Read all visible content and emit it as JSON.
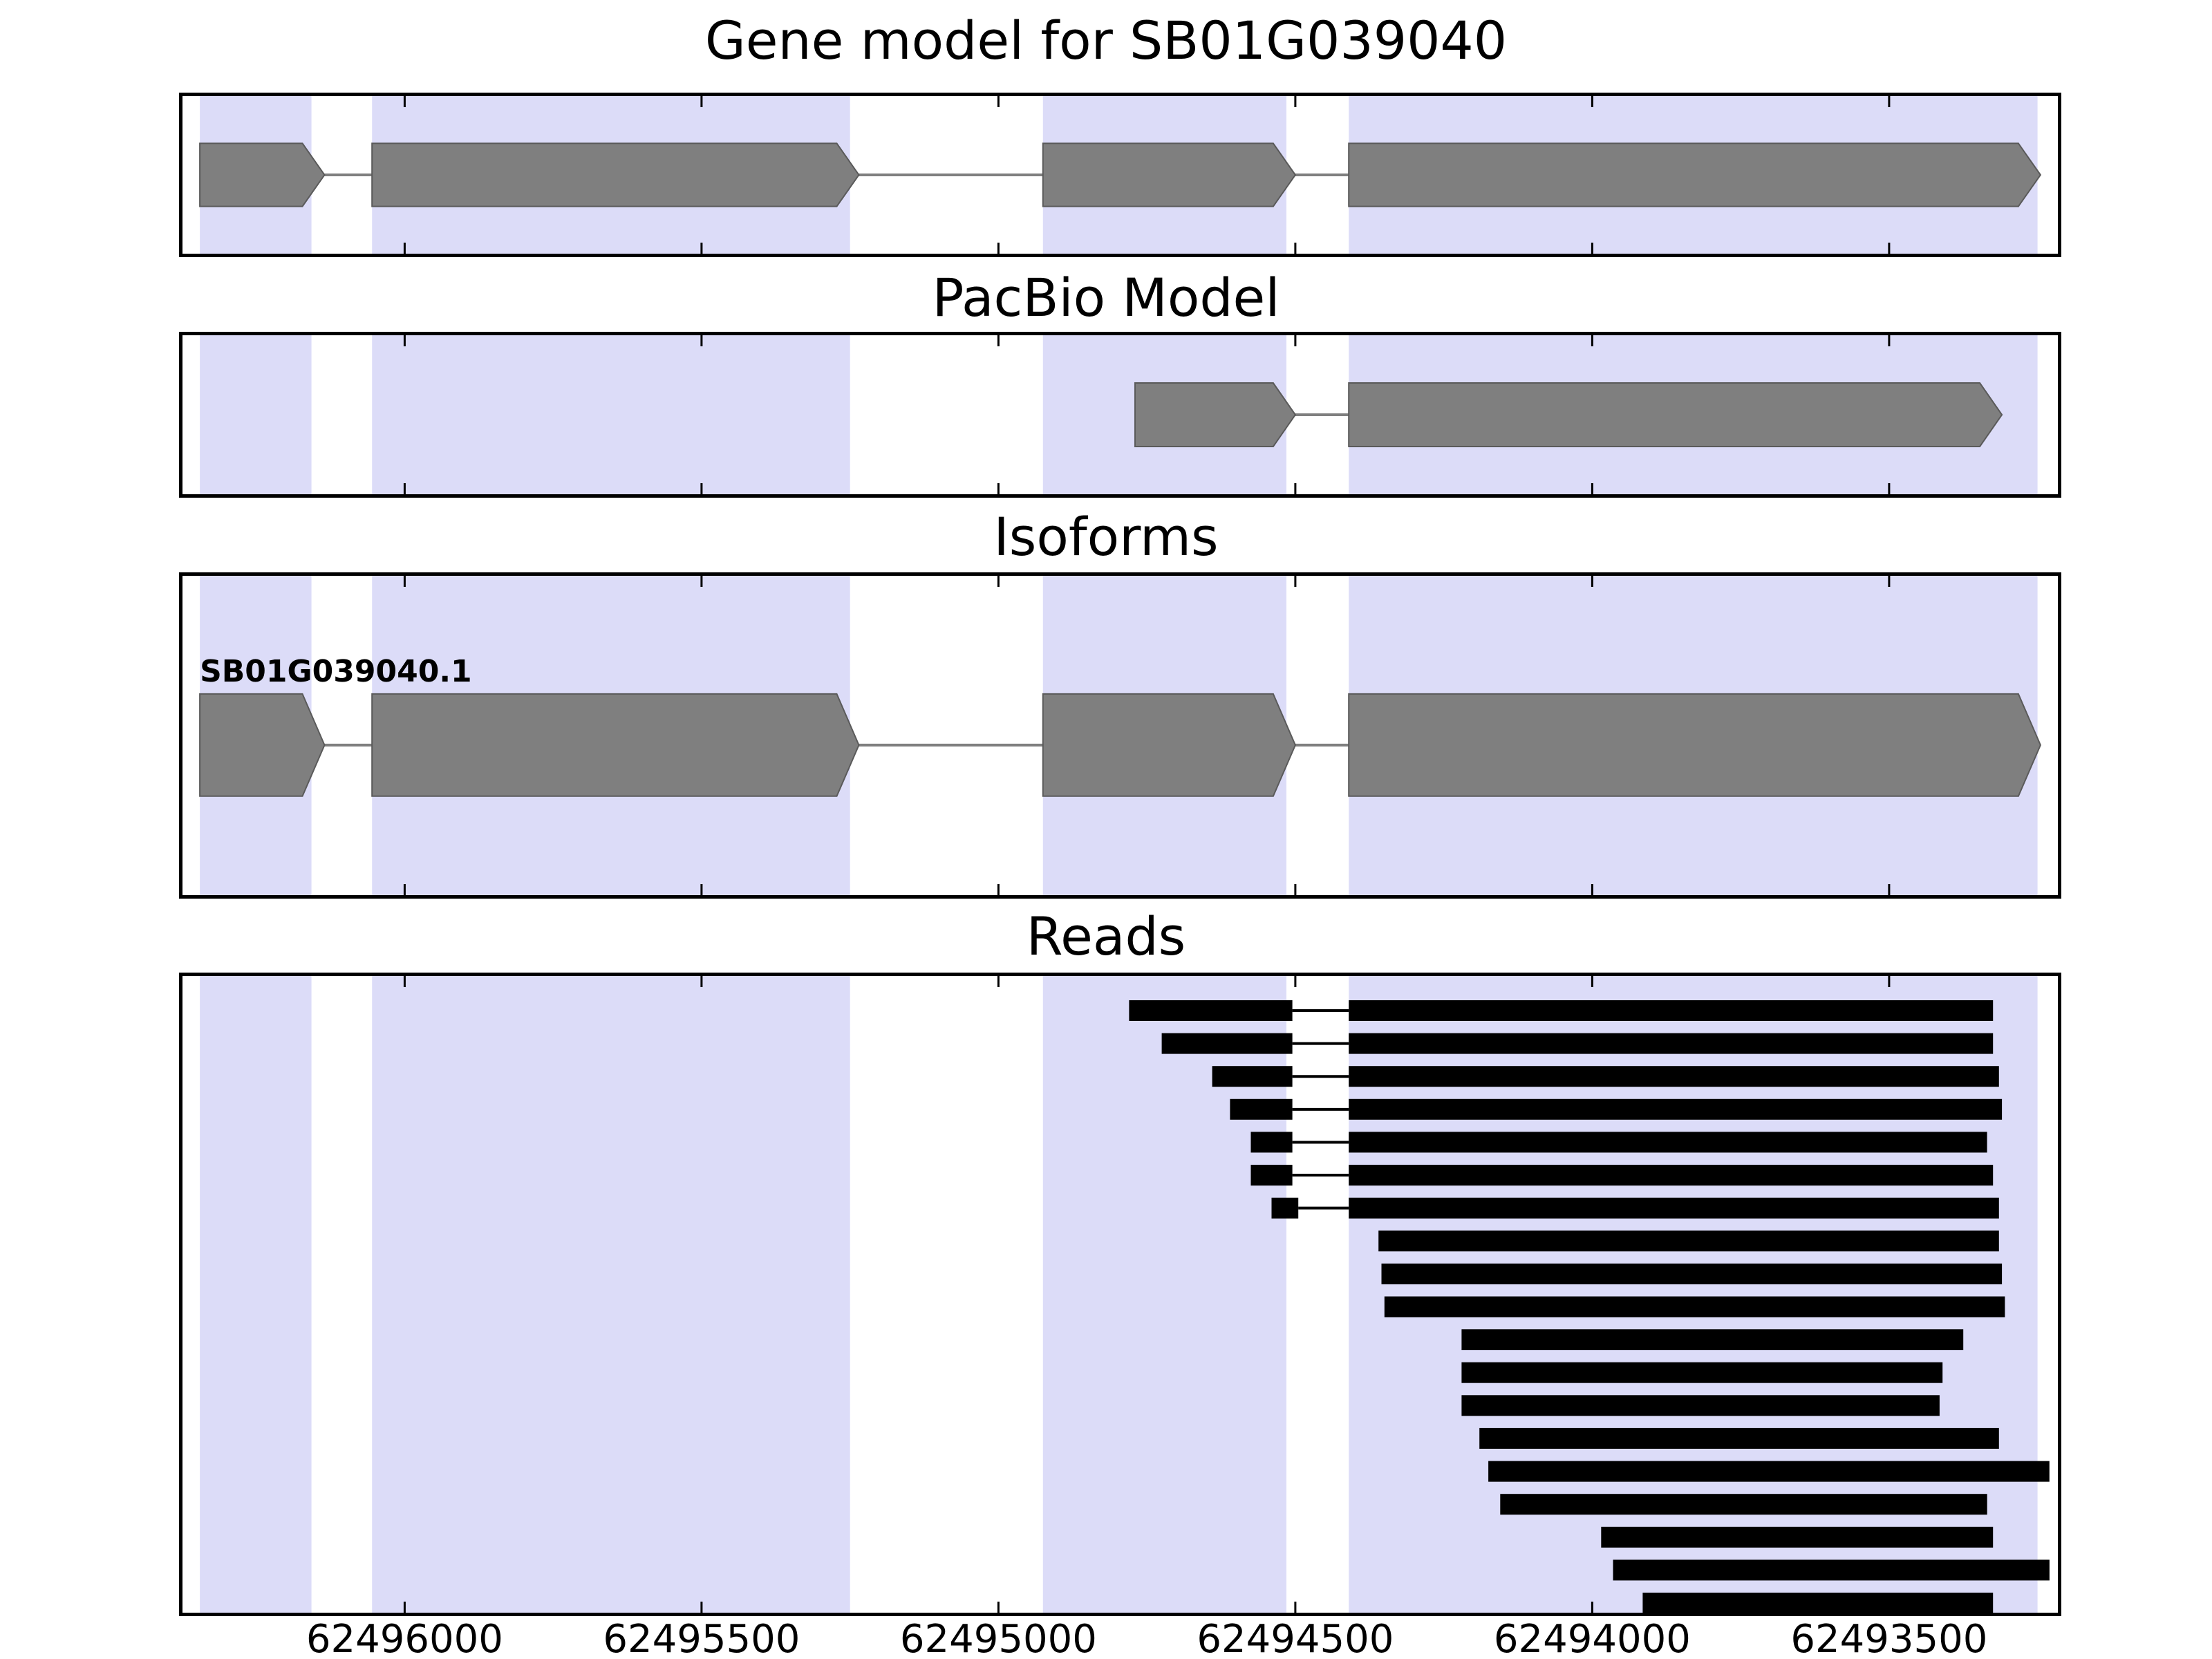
{
  "chart_data": {
    "type": "genome-tracks",
    "axis": {
      "xlim": [
        62496380,
        62493210
      ],
      "orientation": "decreasing-left-to-right",
      "ticks": [
        {
          "value": 62496000,
          "label": "62496000"
        },
        {
          "value": 62495500,
          "label": "62495500"
        },
        {
          "value": 62495000,
          "label": "62495000"
        },
        {
          "value": 62494500,
          "label": "62494500"
        },
        {
          "value": 62494000,
          "label": "62494000"
        },
        {
          "value": 62493500,
          "label": "62493500"
        }
      ]
    },
    "highlight_bands": [
      {
        "start": 62496345,
        "end": 62496157
      },
      {
        "start": 62496055,
        "end": 62495250
      },
      {
        "start": 62494925,
        "end": 62494515
      },
      {
        "start": 62494410,
        "end": 62493250
      }
    ],
    "panels": {
      "gene_model": {
        "title": "Gene model for SB01G039040",
        "strand_direction": "right",
        "exons": [
          {
            "start": 62496345,
            "end": 62496135
          },
          {
            "start": 62496055,
            "end": 62495235
          },
          {
            "start": 62494925,
            "end": 62494500
          },
          {
            "start": 62494410,
            "end": 62493245
          }
        ]
      },
      "pacbio": {
        "title": "PacBio Model",
        "strand_direction": "right",
        "exons": [
          {
            "start": 62494770,
            "end": 62494500
          },
          {
            "start": 62494410,
            "end": 62493310
          }
        ]
      },
      "isoforms": {
        "title": "Isoforms",
        "transcripts": [
          {
            "label": "SB01G039040.1",
            "strand_direction": "right",
            "exons": [
              {
                "start": 62496345,
                "end": 62496135
              },
              {
                "start": 62496055,
                "end": 62495235
              },
              {
                "start": 62494925,
                "end": 62494500
              },
              {
                "start": 62494410,
                "end": 62493245
              }
            ]
          }
        ]
      },
      "reads": {
        "title": "Reads",
        "reads": [
          {
            "segments": [
              [
                62494780,
                62494505
              ],
              [
                62494410,
                62493325
              ]
            ]
          },
          {
            "segments": [
              [
                62494725,
                62494505
              ],
              [
                62494410,
                62493325
              ]
            ]
          },
          {
            "segments": [
              [
                62494640,
                62494505
              ],
              [
                62494410,
                62493315
              ]
            ]
          },
          {
            "segments": [
              [
                62494610,
                62494505
              ],
              [
                62494410,
                62493310
              ]
            ]
          },
          {
            "segments": [
              [
                62494575,
                62494505
              ],
              [
                62494410,
                62493335
              ]
            ]
          },
          {
            "segments": [
              [
                62494575,
                62494505
              ],
              [
                62494410,
                62493325
              ]
            ]
          },
          {
            "segments": [
              [
                62494540,
                62494495
              ],
              [
                62494410,
                62493315
              ]
            ]
          },
          {
            "segments": [
              [
                62494360,
                62493315
              ]
            ]
          },
          {
            "segments": [
              [
                62494355,
                62493310
              ]
            ]
          },
          {
            "segments": [
              [
                62494350,
                62493305
              ]
            ]
          },
          {
            "segments": [
              [
                62494220,
                62493375
              ]
            ]
          },
          {
            "segments": [
              [
                62494220,
                62493410
              ]
            ]
          },
          {
            "segments": [
              [
                62494220,
                62493415
              ]
            ]
          },
          {
            "segments": [
              [
                62494190,
                62493315
              ]
            ]
          },
          {
            "segments": [
              [
                62494175,
                62493230
              ]
            ]
          },
          {
            "segments": [
              [
                62494155,
                62493335
              ]
            ]
          },
          {
            "segments": [
              [
                62493985,
                62493325
              ]
            ]
          },
          {
            "segments": [
              [
                62493965,
                62493230
              ]
            ]
          },
          {
            "segments": [
              [
                62493915,
                62493325
              ]
            ]
          }
        ]
      }
    },
    "style": {
      "band_fill": "#dcdcf8",
      "exon_fill": "#7f7f7f",
      "exon_edge": "#5a5a5a",
      "intron_line": "#7f7f7f",
      "read_fill": "#000000",
      "junction_line": "#000000",
      "panel_border": "#000000",
      "text_color": "#000000"
    }
  }
}
